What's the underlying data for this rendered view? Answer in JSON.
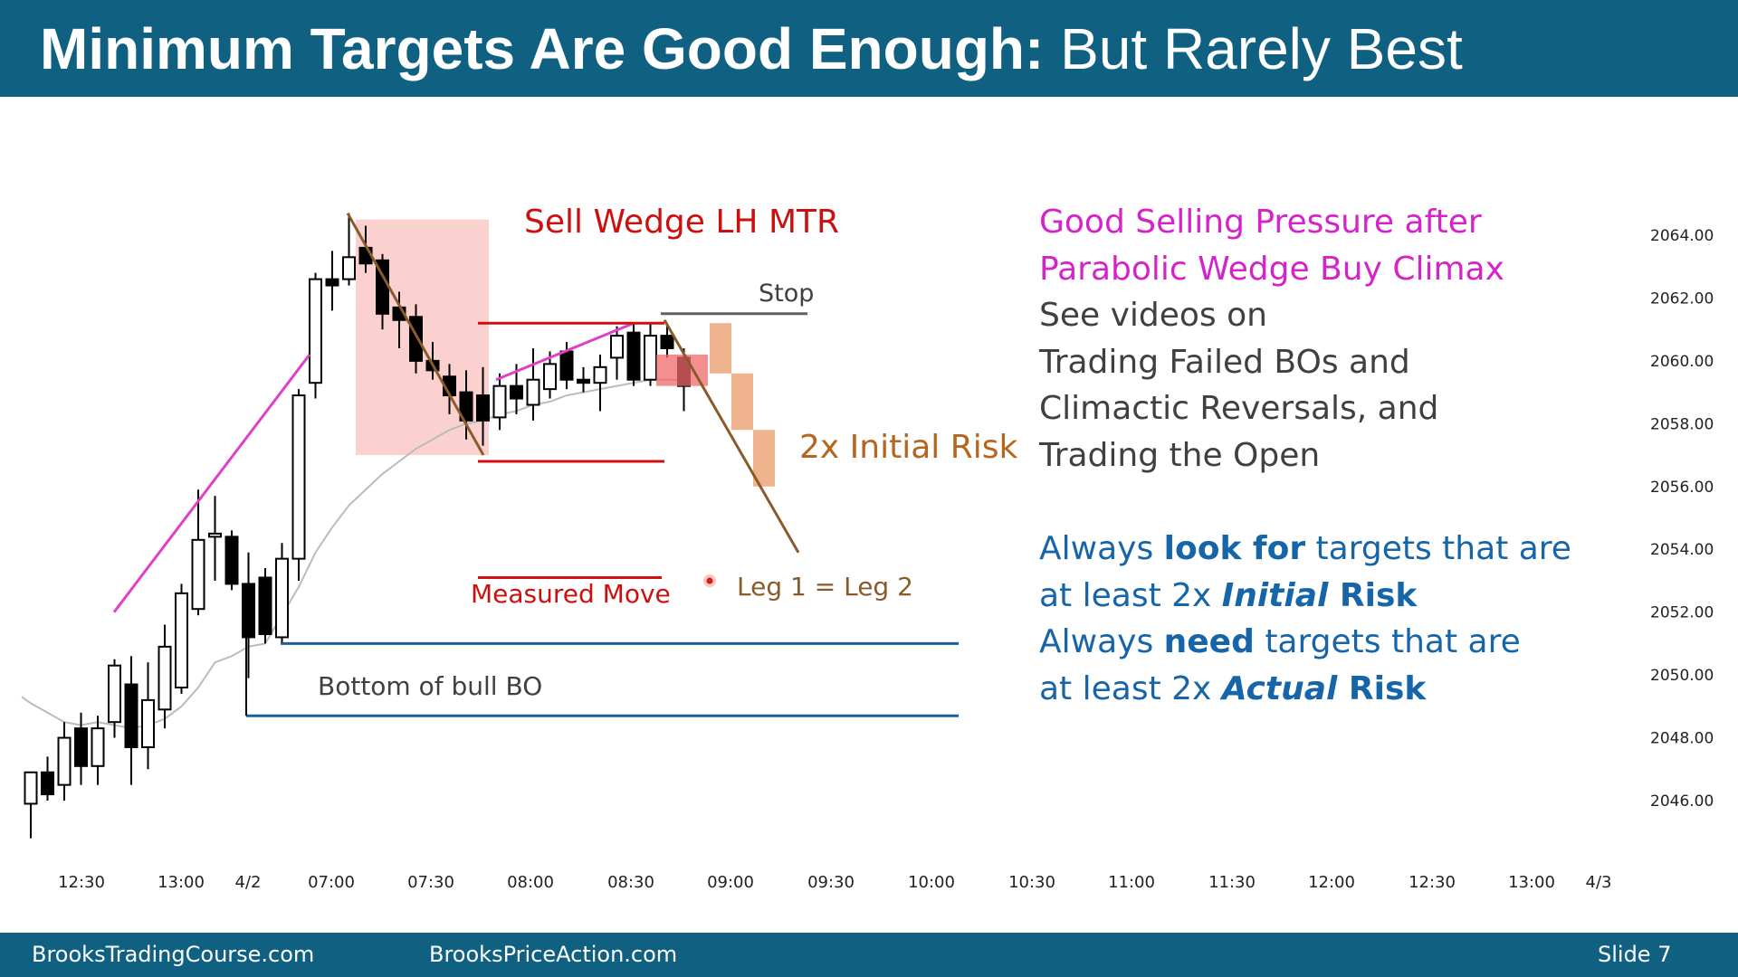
{
  "slide": {
    "title_bold": "Minimum Targets Are Good Enough:",
    "title_rest": " But Rarely Best",
    "footer_left": "BrooksTradingCourse.com",
    "footer_center": "BrooksPriceAction.com",
    "footer_right": "Slide  7"
  },
  "notes": {
    "magenta_lines": [
      "Good Selling Pressure after",
      "Parabolic Wedge Buy Climax"
    ],
    "gray_lines": [
      "See videos on",
      "Trading Failed BOs and",
      "Climactic Reversals, and",
      "Trading the Open"
    ],
    "blue_1a": "Always ",
    "blue_1b": "look for",
    "blue_1c": " targets that are",
    "blue_2a": "at least 2x ",
    "blue_2b": "Initial",
    "blue_2c": " Risk",
    "blue_3a": "Always ",
    "blue_3b": "need",
    "blue_3c": " targets that are",
    "blue_4a": "at least 2x ",
    "blue_4b": "Actual",
    "blue_4c": " Risk"
  },
  "colors": {
    "header": "#106082",
    "bull_wedge": "#e040c8",
    "bear_trend": "#8b5a2b",
    "red_levels": "#d01010",
    "blue_levels": "#1f5f99",
    "box_fill": "#f9c9c6",
    "orange_blocks": "#efb48e",
    "ema": "#bbbbbb"
  },
  "chart_data": {
    "type": "candlestick",
    "y_ticks": [
      "2064.00",
      "2062.00",
      "2060.00",
      "2058.00",
      "2056.00",
      "2054.00",
      "2052.00",
      "2050.00",
      "2048.00",
      "2046.00"
    ],
    "ylim": [
      2044.5,
      2066.5
    ],
    "x_ticks": [
      "12:30",
      "13:00",
      "4/2",
      "07:00",
      "07:30",
      "08:00",
      "08:30",
      "09:00",
      "09:30",
      "10:00",
      "10:30",
      "11:00",
      "11:30",
      "12:00",
      "12:30",
      "13:00",
      "4/3"
    ],
    "candles": [
      {
        "o": 2045.9,
        "h": 2046.9,
        "l": 2044.8,
        "c": 2046.9
      },
      {
        "o": 2046.9,
        "h": 2047.4,
        "l": 2046.0,
        "c": 2046.2
      },
      {
        "o": 2046.5,
        "h": 2048.5,
        "l": 2046.0,
        "c": 2048.0
      },
      {
        "o": 2048.3,
        "h": 2048.8,
        "l": 2046.5,
        "c": 2047.1
      },
      {
        "o": 2047.1,
        "h": 2048.7,
        "l": 2046.5,
        "c": 2048.3
      },
      {
        "o": 2048.5,
        "h": 2050.5,
        "l": 2048.0,
        "c": 2050.3
      },
      {
        "o": 2049.7,
        "h": 2050.6,
        "l": 2046.5,
        "c": 2047.7
      },
      {
        "o": 2047.7,
        "h": 2050.4,
        "l": 2047.0,
        "c": 2049.2
      },
      {
        "o": 2048.9,
        "h": 2051.6,
        "l": 2048.3,
        "c": 2050.9
      },
      {
        "o": 2049.6,
        "h": 2052.9,
        "l": 2049.4,
        "c": 2052.6
      },
      {
        "o": 2052.1,
        "h": 2055.9,
        "l": 2051.9,
        "c": 2054.3
      },
      {
        "o": 2054.4,
        "h": 2055.7,
        "l": 2053.0,
        "c": 2054.5
      },
      {
        "o": 2054.4,
        "h": 2054.6,
        "l": 2052.7,
        "c": 2052.9
      },
      {
        "o": 2052.9,
        "h": 2053.9,
        "l": 2049.9,
        "c": 2051.2
      },
      {
        "o": 2053.1,
        "h": 2053.4,
        "l": 2051.0,
        "c": 2051.3
      },
      {
        "o": 2051.2,
        "h": 2054.2,
        "l": 2051.0,
        "c": 2053.7
      },
      {
        "o": 2053.7,
        "h": 2059.1,
        "l": 2053.0,
        "c": 2058.9
      },
      {
        "o": 2059.3,
        "h": 2062.8,
        "l": 2058.8,
        "c": 2062.6
      },
      {
        "o": 2062.6,
        "h": 2063.5,
        "l": 2061.6,
        "c": 2062.4
      },
      {
        "o": 2062.6,
        "h": 2064.7,
        "l": 2062.4,
        "c": 2063.3
      },
      {
        "o": 2063.6,
        "h": 2064.3,
        "l": 2062.8,
        "c": 2063.1
      },
      {
        "o": 2063.2,
        "h": 2063.4,
        "l": 2061.0,
        "c": 2061.5
      },
      {
        "o": 2061.7,
        "h": 2062.2,
        "l": 2060.4,
        "c": 2061.3
      },
      {
        "o": 2061.4,
        "h": 2061.8,
        "l": 2059.6,
        "c": 2060.0
      },
      {
        "o": 2060.0,
        "h": 2060.6,
        "l": 2059.4,
        "c": 2059.7
      },
      {
        "o": 2059.5,
        "h": 2059.9,
        "l": 2058.3,
        "c": 2058.9
      },
      {
        "o": 2059.0,
        "h": 2059.7,
        "l": 2057.5,
        "c": 2058.1
      },
      {
        "o": 2058.9,
        "h": 2059.8,
        "l": 2057.3,
        "c": 2058.1
      },
      {
        "o": 2058.2,
        "h": 2059.6,
        "l": 2057.8,
        "c": 2059.2
      },
      {
        "o": 2059.2,
        "h": 2059.9,
        "l": 2058.3,
        "c": 2058.8
      },
      {
        "o": 2058.6,
        "h": 2060.4,
        "l": 2058.1,
        "c": 2059.4
      },
      {
        "o": 2059.1,
        "h": 2060.3,
        "l": 2058.8,
        "c": 2059.9
      },
      {
        "o": 2060.3,
        "h": 2060.6,
        "l": 2059.1,
        "c": 2059.4
      },
      {
        "o": 2059.4,
        "h": 2059.8,
        "l": 2059.0,
        "c": 2059.3
      },
      {
        "o": 2059.3,
        "h": 2060.2,
        "l": 2058.4,
        "c": 2059.8
      },
      {
        "o": 2060.1,
        "h": 2061.1,
        "l": 2059.4,
        "c": 2060.8
      },
      {
        "o": 2060.9,
        "h": 2061.2,
        "l": 2059.2,
        "c": 2059.4
      },
      {
        "o": 2059.4,
        "h": 2061.2,
        "l": 2059.2,
        "c": 2060.8
      },
      {
        "o": 2060.8,
        "h": 2061.2,
        "l": 2060.1,
        "c": 2060.4
      },
      {
        "o": 2060.1,
        "h": 2060.4,
        "l": 2058.4,
        "c": 2059.2
      }
    ],
    "ema": [
      2049.1,
      2048.8,
      2048.5,
      2048.4,
      2048.5,
      2048.4,
      2048.3,
      2048.4,
      2048.6,
      2049.0,
      2049.6,
      2050.4,
      2050.6,
      2050.9,
      2051.0,
      2051.9,
      2052.8,
      2053.9,
      2054.7,
      2055.4,
      2055.9,
      2056.4,
      2056.8,
      2057.2,
      2057.5,
      2057.8,
      2058.0,
      2058.1,
      2058.3,
      2058.4,
      2058.6,
      2058.7,
      2058.9,
      2059.0,
      2059.1,
      2059.2,
      2059.3,
      2059.4,
      2059.4,
      2059.4
    ],
    "annotations": {
      "sell_wedge_label": "Sell Wedge LH MTR",
      "stop_label": "Stop",
      "initial_risk_label": "2x Initial Risk",
      "measured_move_label": "Measured Move",
      "leg_label": "Leg 1 = Leg 2",
      "bull_bo_label": "Bottom of bull BO",
      "red_levels": [
        2061.2,
        2056.8,
        2053.1
      ],
      "stop_level": 2061.5,
      "blue_levels": [
        2051.0,
        2048.7
      ]
    }
  }
}
